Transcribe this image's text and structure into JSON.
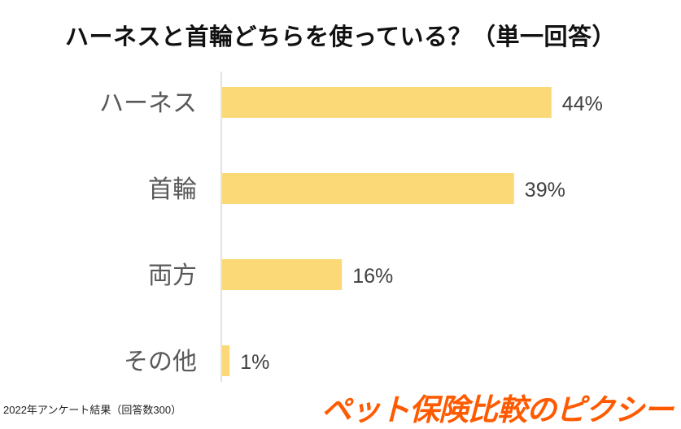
{
  "chart_data": {
    "type": "bar",
    "orientation": "horizontal",
    "title": "ハーネスと首輪どちらを使っている？（単一回答）",
    "categories": [
      "ハーネス",
      "首輪",
      "両方",
      "その他"
    ],
    "values": [
      44,
      39,
      16,
      1
    ],
    "value_labels": [
      "44%",
      "39%",
      "16%",
      "1%"
    ],
    "unit": "%",
    "xlim": [
      0,
      50
    ],
    "grid": false,
    "bar_color": "#fcd977"
  },
  "source_note": "2022年アンケート結果（回答数300）",
  "brand_logo": "ペット保険比較のピクシー",
  "colors": {
    "bar": "#fcd977",
    "axis": "#d9d9d9",
    "brand": "#ff5a00"
  }
}
